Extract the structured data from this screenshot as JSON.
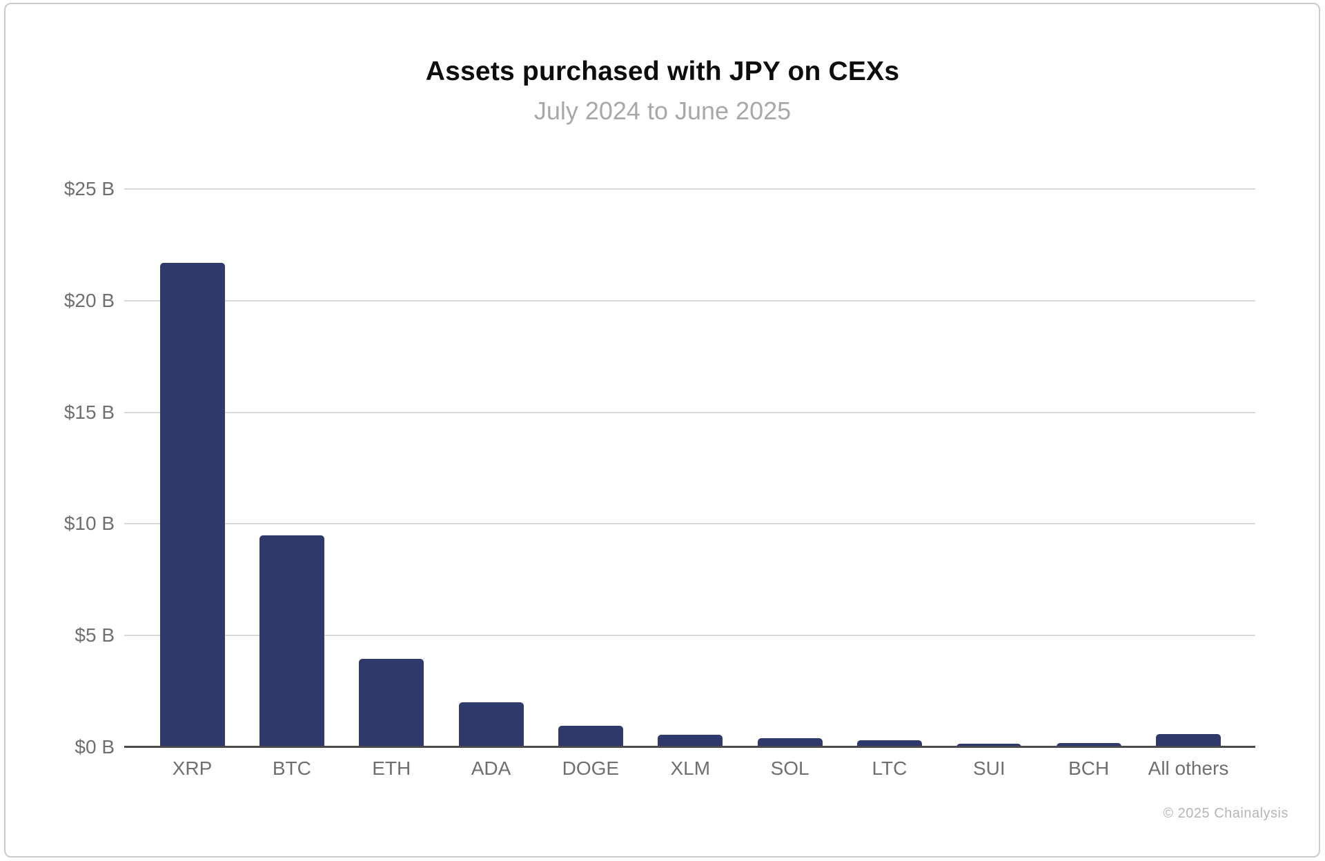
{
  "chart": {
    "title": "Assets purchased with JPY on CEXs",
    "subtitle": "July 2024 to June 2025",
    "copyright": "© 2025 Chainalysis"
  },
  "chart_data": {
    "type": "bar",
    "title": "Assets purchased with JPY on CEXs",
    "subtitle": "July 2024 to June 2025",
    "categories": [
      "XRP",
      "BTC",
      "ETH",
      "ADA",
      "DOGE",
      "XLM",
      "SOL",
      "LTC",
      "SUI",
      "BCH",
      "All others"
    ],
    "values": [
      21.7,
      9.5,
      3.95,
      2.0,
      0.95,
      0.55,
      0.4,
      0.3,
      0.17,
      0.2,
      0.6
    ],
    "value_unit": "USD billions",
    "xlabel": "",
    "ylabel": "",
    "ylim": [
      0,
      25
    ],
    "yticks": [
      {
        "value": 0,
        "label": "$0 B"
      },
      {
        "value": 5,
        "label": "$5 B"
      },
      {
        "value": 10,
        "label": "$10 B"
      },
      {
        "value": 15,
        "label": "$15 B"
      },
      {
        "value": 20,
        "label": "$20 B"
      },
      {
        "value": 25,
        "label": "$25 B"
      }
    ],
    "grid": true,
    "legend": false
  },
  "colors": {
    "bar": "#2d3a6b",
    "gridline": "#d9d9d9",
    "axis_line": "#4a4a4a",
    "tick_label": "#6f6f6f",
    "title": "#0d0d0d",
    "subtitle": "#a8a8a8",
    "copyright": "#b5b5b5",
    "card_border": "#cbcbcb",
    "background": "#ffffff"
  }
}
